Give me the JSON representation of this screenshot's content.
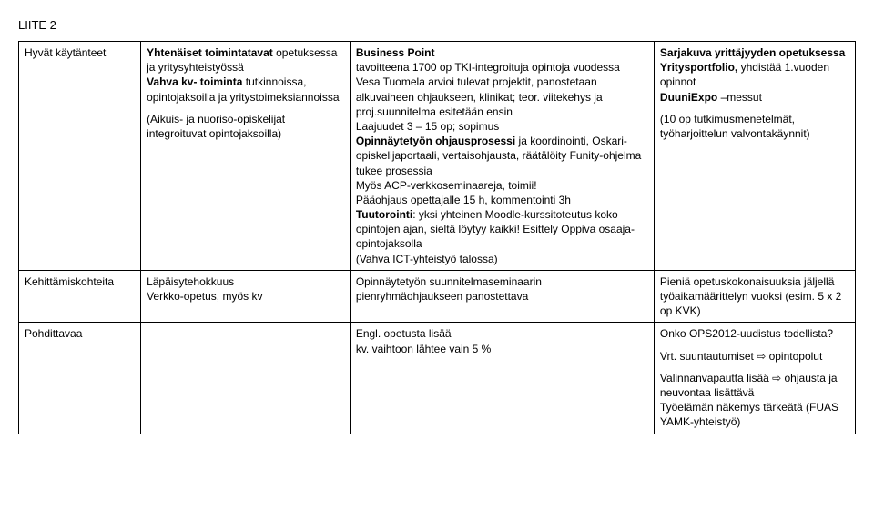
{
  "page_title": "LIITE 2",
  "table": {
    "rows": [
      {
        "label": "Hyvät käytänteet",
        "c1_html": "<div class='para'><b>Yhtenäiset toimintatavat</b> opetuksessa ja yritysyhteistyössä<br><b>Vahva kv- toiminta</b> tutkinnoissa, opintojaksoilla ja yritystoimeksiannoissa</div><div class='para'>(Aikuis- ja nuoriso-opiskelijat integroituvat opintojaksoilla)</div>",
        "c2_html": "<div class='para'><b>Business Point</b><br>tavoitteena 1700 op TKI-integroituja opintoja vuodessa<br>Vesa Tuomela arvioi tulevat projektit, panostetaan alkuvaiheen ohjaukseen, klinikat; teor. viitekehys ja proj.suunnitelma esitetään ensin<br>Laajuudet 3 – 15 op; sopimus<br><b>Opinnäytetyön ohjausprosessi</b> ja koordinointi, Oskari-opiskelijaportaali, vertaisohjausta, räätälöity Funity-ohjelma tukee prosessia<br>Myös ACP-verkkoseminaareja, toimii!<br>Pääohjaus opettajalle 15 h, kommentointi 3h<br><b>Tuutorointi</b>: yksi yhteinen Moodle-kurssitoteutus koko opintojen ajan, sieltä löytyy kaikki! Esittely Oppiva osaaja-opintojaksolla<br>(Vahva ICT-yhteistyö talossa)</div>",
        "c3_html": "<div class='para'><b>Sarjakuva yrittäjyyden opetuksessa</b><br><b>Yritysportfolio,</b> yhdistää 1.vuoden opinnot<br><b>DuuniExpo</b> –messut</div><div class='para'>(10 op tutkimusmenetelmät, työharjoittelun valvontakäynnit)</div>"
      },
      {
        "label": "Kehittämiskohteita",
        "c1_html": "Läpäisytehokkuus<br>Verkko-opetus, myös kv",
        "c2_html": "Opinnäytetyön suunnitelmaseminaarin pienryhmäohjaukseen panostettava",
        "c3_html": "Pieniä opetuskokonaisuuksia jäljellä työaikamäärittelyn vuoksi (esim. 5 x 2 op KVK)"
      },
      {
        "label": "Pohdittavaa",
        "c1_html": "",
        "c2_html": "Engl. opetusta lisää<br>kv. vaihtoon lähtee vain  5 %",
        "c3_html": "<div class='para'>Onko OPS2012-uudistus todellista?</div><div class='para'>Vrt. suuntautumiset ⇨ opintopolut</div><div class='para'>Valinnanvapautta lisää ⇨ ohjausta ja neuvontaa lisättävä<br>Työelämän näkemys tärkeätä (FUAS YAMK-yhteistyö)</div>"
      }
    ]
  }
}
